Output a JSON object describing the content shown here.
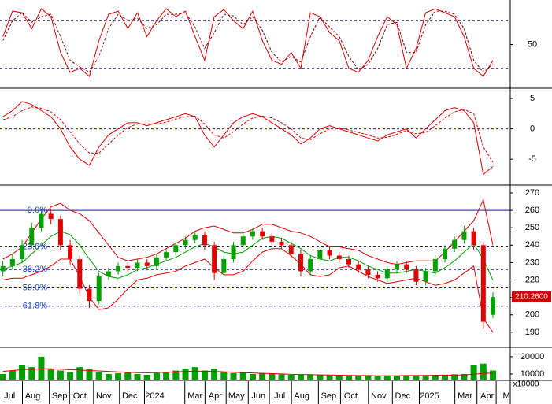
{
  "chart_data": [
    {
      "type": "line",
      "xlim": [
        -0.3,
        52.8
      ],
      "ylim": [
        -3,
        104
      ],
      "yticks": [
        50
      ],
      "levels": [
        20,
        80
      ],
      "series": [
        {
          "color": "#e00000",
          "dash": false,
          "values": [
            60,
            92,
            90,
            70,
            95,
            85,
            40,
            15,
            20,
            10,
            55,
            88,
            92,
            70,
            90,
            60,
            80,
            95,
            85,
            92,
            60,
            30,
            85,
            94,
            80,
            70,
            92,
            55,
            30,
            25,
            40,
            20,
            90,
            85,
            65,
            55,
            20,
            15,
            30,
            60,
            85,
            75,
            20,
            45,
            90,
            95,
            90,
            85,
            60,
            20,
            10,
            30
          ]
        },
        {
          "color": "#800000",
          "dash": true,
          "values": [
            55,
            80,
            90,
            78,
            85,
            88,
            60,
            30,
            22,
            15,
            35,
            70,
            88,
            80,
            83,
            70,
            75,
            88,
            88,
            90,
            72,
            45,
            65,
            88,
            86,
            75,
            85,
            68,
            40,
            28,
            35,
            28,
            60,
            85,
            72,
            60,
            35,
            18,
            25,
            45,
            75,
            78,
            40,
            40,
            75,
            92,
            92,
            88,
            70,
            30,
            15,
            25
          ]
        }
      ]
    },
    {
      "type": "line",
      "xlim": [
        -0.3,
        52.8
      ],
      "ylim": [
        -9,
        6.3
      ],
      "yticks": [
        5,
        0,
        -5
      ],
      "levels": [
        0
      ],
      "series": [
        {
          "color": "#e00000",
          "dash": false,
          "values": [
            2,
            3,
            4.5,
            4,
            3,
            2,
            0,
            -3,
            -5,
            -6,
            -3,
            -1,
            0,
            1,
            1,
            0.5,
            1,
            1.5,
            2,
            2.5,
            2,
            -1,
            -3,
            -1,
            1,
            2,
            2.5,
            2,
            1,
            0,
            -1,
            -2.5,
            -1.5,
            0,
            0.5,
            0,
            -0.5,
            -1,
            -1.5,
            -2,
            -1,
            -0.5,
            0,
            -1.5,
            0,
            1.5,
            3,
            3.5,
            3,
            1,
            -7.5,
            -6.2
          ]
        },
        {
          "color": "#e00000",
          "dash": true,
          "values": [
            1.5,
            2,
            3,
            3.6,
            3.4,
            2.8,
            1.5,
            -0.5,
            -2.5,
            -4,
            -4,
            -2.5,
            -1,
            0.2,
            0.8,
            0.8,
            0.8,
            1.1,
            1.6,
            2,
            2.1,
            0.8,
            -1,
            -1.5,
            -0.5,
            0.8,
            1.8,
            2.1,
            1.8,
            1,
            0,
            -1.5,
            -1.8,
            -0.8,
            0,
            0.2,
            -0.2,
            -0.6,
            -1,
            -1.5,
            -1.4,
            -0.9,
            -0.3,
            -0.8,
            -0.6,
            0.5,
            1.8,
            2.8,
            3.2,
            2.5,
            -3,
            -5.5
          ]
        }
      ]
    },
    {
      "type": "candlestick",
      "xlim": [
        -0.3,
        52.8
      ],
      "ylim": [
        181.8,
        273.6
      ],
      "yticks": [
        270,
        260,
        250,
        240,
        230,
        220,
        210,
        200,
        190
      ],
      "up_color": "#00a000",
      "down_color": "#e00000",
      "open": [
        225,
        228,
        232,
        240,
        250,
        258,
        255,
        240,
        232,
        215,
        208,
        222,
        225,
        228,
        227,
        230,
        228,
        233,
        236,
        240,
        243,
        246,
        240,
        224,
        232,
        240,
        245,
        248,
        245,
        242,
        240,
        235,
        225,
        232,
        237,
        234,
        232,
        229,
        226,
        223,
        221,
        226,
        229,
        226,
        219,
        225,
        232,
        238,
        243,
        248,
        240,
        200
      ],
      "high": [
        231,
        235,
        243,
        253,
        261,
        261,
        257,
        243,
        234,
        217,
        224,
        227,
        230,
        230,
        232,
        232,
        235,
        238,
        242,
        245,
        248,
        248,
        242,
        234,
        242,
        247,
        250,
        250,
        247,
        244,
        242,
        237,
        234,
        239,
        239,
        236,
        234,
        231,
        228,
        225,
        228,
        231,
        231,
        228,
        227,
        234,
        240,
        245,
        251,
        250,
        242,
        213
      ],
      "low": [
        222,
        226,
        230,
        238,
        248,
        252,
        237,
        229,
        212,
        204,
        206,
        220,
        223,
        225,
        225,
        226,
        226,
        231,
        234,
        238,
        241,
        237,
        220,
        222,
        230,
        238,
        243,
        243,
        240,
        238,
        233,
        222,
        223,
        230,
        232,
        230,
        227,
        224,
        221,
        219,
        219,
        224,
        224,
        217,
        217,
        223,
        230,
        236,
        241,
        237,
        192,
        198
      ],
      "close": [
        228,
        232,
        240,
        250,
        258,
        255,
        240,
        232,
        215,
        208,
        222,
        225,
        228,
        227,
        230,
        228,
        233,
        236,
        240,
        243,
        246,
        240,
        224,
        232,
        240,
        245,
        248,
        245,
        242,
        240,
        235,
        225,
        232,
        237,
        234,
        232,
        229,
        226,
        223,
        221,
        226,
        229,
        226,
        219,
        225,
        232,
        238,
        243,
        248,
        240,
        196,
        210.26
      ],
      "bands": [
        {
          "color": "#e00000",
          "values": [
            232,
            235,
            239,
            247,
            255,
            262,
            264,
            260,
            258,
            254,
            247,
            240,
            233,
            231,
            232,
            233,
            235,
            238,
            241,
            244,
            248,
            250,
            251,
            249,
            247,
            247,
            249,
            252,
            252,
            250,
            248,
            247,
            245,
            242,
            239,
            239,
            238,
            237,
            234,
            232,
            230,
            229,
            230,
            231,
            231,
            231,
            236,
            242,
            248,
            254,
            266,
            240
          ]
        },
        {
          "color": "#00a000",
          "values": [
            226,
            228,
            230,
            235,
            240,
            245,
            248,
            246,
            240,
            232,
            225,
            222,
            221,
            223,
            226,
            227,
            229,
            231,
            233,
            236,
            239,
            241,
            239,
            236,
            235,
            236,
            240,
            244,
            245,
            244,
            241,
            238,
            234,
            232,
            231,
            233,
            233,
            231,
            228,
            226,
            224,
            224,
            225,
            226,
            225,
            224,
            227,
            231,
            236,
            241,
            232,
            220
          ]
        },
        {
          "color": "#e00000",
          "values": [
            220,
            221,
            221,
            223,
            225,
            228,
            232,
            232,
            222,
            210,
            203,
            204,
            209,
            215,
            220,
            221,
            223,
            224,
            225,
            228,
            230,
            232,
            227,
            223,
            223,
            225,
            231,
            236,
            238,
            238,
            234,
            229,
            223,
            222,
            223,
            227,
            228,
            225,
            222,
            220,
            218,
            219,
            220,
            221,
            219,
            217,
            218,
            220,
            224,
            228,
            198,
            190
          ]
        }
      ],
      "fib_levels": [
        {
          "value": 260,
          "label": "0.0%"
        },
        {
          "value": 239,
          "label": "23.6%"
        },
        {
          "value": 226,
          "label": "38.2%"
        },
        {
          "value": 215.5,
          "label": "50.0%"
        },
        {
          "value": 205,
          "label": "61.8%"
        }
      ],
      "last_price": {
        "value": 210.26,
        "label": "210.2600"
      }
    },
    {
      "type": "bar",
      "xlim": [
        -0.3,
        52.8
      ],
      "ylim": [
        6800,
        24500
      ],
      "yticks": [
        20000,
        10000
      ],
      "unit_label": "x10000",
      "color": "#00a000",
      "values": [
        10000,
        12000,
        15000,
        14000,
        20000,
        13000,
        12000,
        11000,
        14000,
        13000,
        11000,
        10000,
        10500,
        11000,
        10000,
        9500,
        10500,
        11000,
        12000,
        13000,
        14000,
        12000,
        13000,
        11000,
        10500,
        11000,
        10000,
        10500,
        10000,
        9800,
        9500,
        9800,
        9500,
        9300,
        9200,
        9000,
        9100,
        9000,
        8900,
        9000,
        9200,
        9100,
        9200,
        9000,
        9400,
        9500,
        9600,
        9800,
        10000,
        15000,
        16000,
        12000
      ],
      "average": {
        "color": "#e00000",
        "values": [
          11500,
          12000,
          12500,
          12800,
          13000,
          13000,
          12800,
          12500,
          12300,
          12000,
          11800,
          11500,
          11200,
          11000,
          10800,
          10700,
          10800,
          11000,
          11200,
          11500,
          11600,
          11600,
          11500,
          11300,
          11000,
          10800,
          10600,
          10400,
          10200,
          10000,
          9800,
          9700,
          9600,
          9500,
          9400,
          9300,
          9200,
          9100,
          9100,
          9000,
          9000,
          9000,
          9100,
          9100,
          9100,
          9200,
          9300,
          9400,
          9500,
          9900,
          10300,
          10500
        ]
      },
      "xticks": [
        {
          "value": 0.7,
          "label": "Jul"
        },
        {
          "value": 3.1,
          "label": "Aug"
        },
        {
          "value": 5.9,
          "label": "Sep"
        },
        {
          "value": 8.0,
          "label": "Oct"
        },
        {
          "value": 10.5,
          "label": "Nov"
        },
        {
          "value": 13.2,
          "label": "Dec"
        },
        {
          "value": 15.8,
          "label": "2024"
        },
        {
          "value": 20.0,
          "label": "Mar"
        },
        {
          "value": 22.1,
          "label": "Apr"
        },
        {
          "value": 24.3,
          "label": "May"
        },
        {
          "value": 26.6,
          "label": "Jun"
        },
        {
          "value": 28.8,
          "label": "Jul"
        },
        {
          "value": 31.1,
          "label": "Aug"
        },
        {
          "value": 33.9,
          "label": "Sep"
        },
        {
          "value": 36.2,
          "label": "Oct"
        },
        {
          "value": 39.1,
          "label": "Nov"
        },
        {
          "value": 41.6,
          "label": "Dec"
        },
        {
          "value": 44.4,
          "label": "2025"
        },
        {
          "value": 48.1,
          "label": "Mar"
        },
        {
          "value": 50.4,
          "label": "Apr"
        },
        {
          "value": 52.4,
          "label": "M"
        }
      ]
    }
  ]
}
